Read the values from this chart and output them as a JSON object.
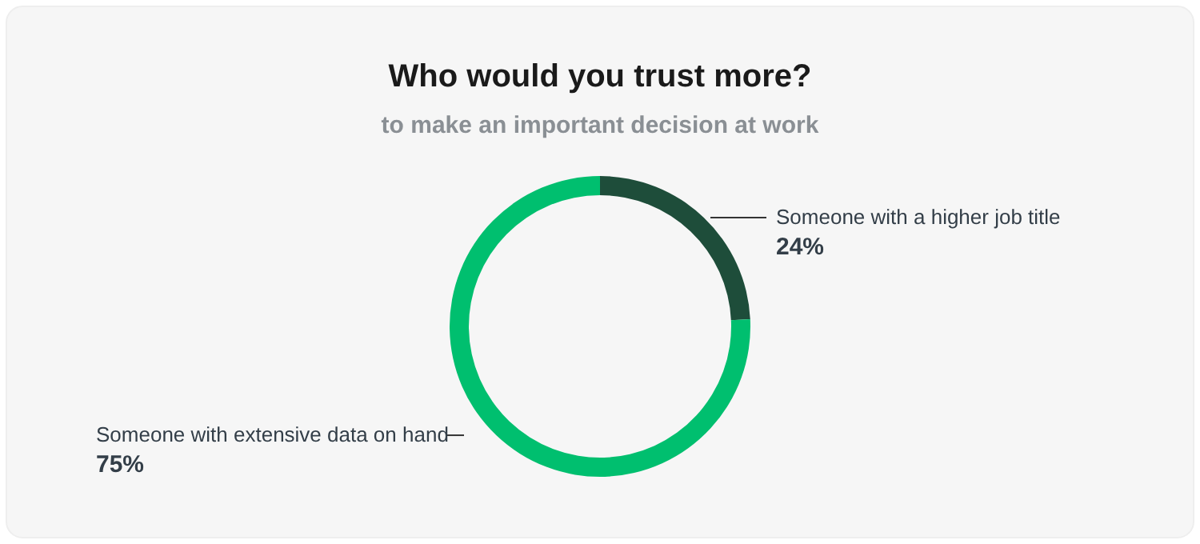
{
  "chart_data": {
    "type": "donut",
    "title": "Who would you trust more?",
    "subtitle": "to make an important decision at work",
    "categories": [
      "Someone with a higher job title",
      "Someone with extensive data on hand"
    ],
    "values": [
      24,
      75
    ],
    "value_labels": [
      "24%",
      "75%"
    ],
    "colors": [
      "#1e4d3a",
      "#00bf6f"
    ]
  }
}
